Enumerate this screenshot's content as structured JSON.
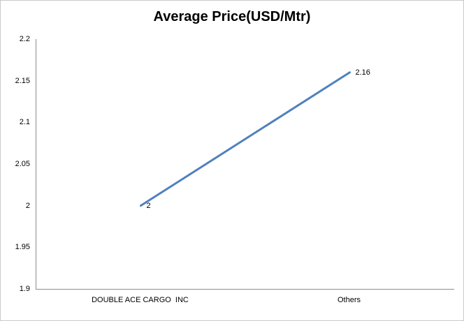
{
  "chart_data": {
    "type": "line",
    "title": "Average Price(USD/Mtr)",
    "categories": [
      "DOUBLE ACE CARGO  INC",
      "Others"
    ],
    "series": [
      {
        "name": "Average Price (USD/Mtr)",
        "values": [
          2,
          2.16
        ]
      }
    ],
    "data_labels": [
      "2",
      "2.16"
    ],
    "y_ticks": [
      "2.2",
      "2.15",
      "2.1",
      "2.05",
      "2",
      "1.95",
      "1.9"
    ],
    "ylim": [
      1.9,
      2.2
    ],
    "xlabel": "",
    "ylabel": "",
    "grid": false,
    "legend_position": "none",
    "colors": {
      "line": "#4F81BD",
      "axis": "#8C8C8C",
      "text": "#000000",
      "chart_border": "#C9C9C9",
      "background": "#FFFFFF"
    }
  }
}
